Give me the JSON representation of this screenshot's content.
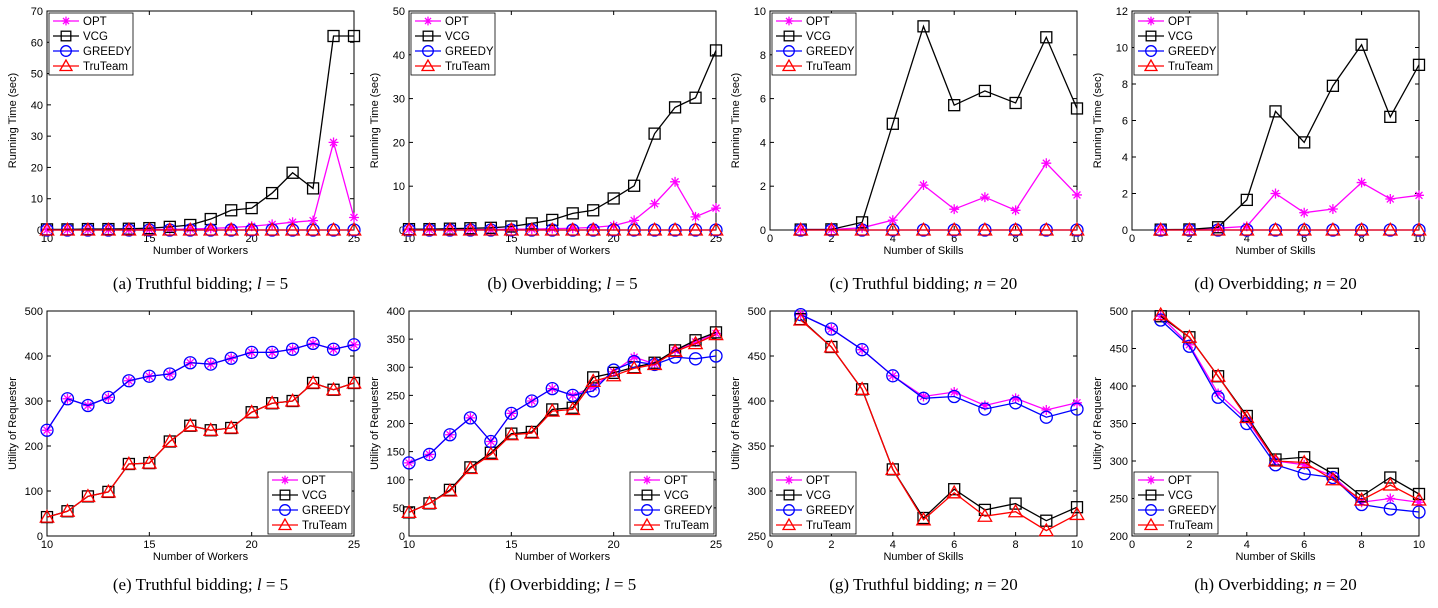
{
  "series_style": [
    {
      "name": "OPT",
      "color": "#ff00ff",
      "marker": "star"
    },
    {
      "name": "VCG",
      "color": "#000000",
      "marker": "square"
    },
    {
      "name": "GREEDY",
      "color": "#0000ff",
      "marker": "circle"
    },
    {
      "name": "TruTeam",
      "color": "#ff0000",
      "marker": "triangle"
    }
  ],
  "chart_data": [
    {
      "type": "line",
      "caption_prefix": "(a) Truthful bidding;",
      "caption_var": "l",
      "caption_eq": " = 5",
      "xlabel": "Number of Workers",
      "ylabel": "Running Time (sec)",
      "xlim": [
        10,
        25
      ],
      "ylim": [
        0,
        70
      ],
      "xticks": [
        10,
        15,
        20,
        25
      ],
      "yticks": [
        0,
        10,
        20,
        30,
        40,
        50,
        60,
        70
      ],
      "legend": "top-left",
      "x": [
        10,
        11,
        12,
        13,
        14,
        15,
        16,
        17,
        18,
        19,
        20,
        21,
        22,
        23,
        24,
        25
      ],
      "series": [
        {
          "name": "OPT",
          "values": [
            0.1,
            0.1,
            0.1,
            0.1,
            0.1,
            0.2,
            0.2,
            0.3,
            0.5,
            0.8,
            1.2,
            1.8,
            2.5,
            3,
            28,
            4
          ]
        },
        {
          "name": "VCG",
          "values": [
            0.2,
            0.2,
            0.3,
            0.3,
            0.4,
            0.6,
            1,
            1.6,
            3.5,
            6.3,
            7,
            11.8,
            18.3,
            13.3,
            62,
            62
          ]
        },
        {
          "name": "GREEDY",
          "values": [
            0,
            0,
            0,
            0,
            0,
            0,
            0,
            0,
            0,
            0,
            0,
            0,
            0,
            0,
            0,
            0
          ]
        },
        {
          "name": "TruTeam",
          "values": [
            0,
            0,
            0,
            0,
            0,
            0,
            0,
            0,
            0,
            0,
            0,
            0,
            0,
            0,
            0,
            0
          ]
        }
      ]
    },
    {
      "type": "line",
      "caption_prefix": "(b) Overbidding;",
      "caption_var": "l",
      "caption_eq": " = 5",
      "xlabel": "Number of Workers",
      "ylabel": "Running Time (sec)",
      "xlim": [
        10,
        25
      ],
      "ylim": [
        0,
        50
      ],
      "xticks": [
        10,
        15,
        20,
        25
      ],
      "yticks": [
        0,
        10,
        20,
        30,
        40,
        50
      ],
      "legend": "top-left",
      "x": [
        10,
        11,
        12,
        13,
        14,
        15,
        16,
        17,
        18,
        19,
        20,
        21,
        22,
        23,
        24,
        25
      ],
      "series": [
        {
          "name": "OPT",
          "values": [
            0.1,
            0.1,
            0.1,
            0.1,
            0.1,
            0.2,
            0.2,
            0.3,
            0.4,
            0.6,
            1,
            2.2,
            6,
            11,
            3,
            5
          ]
        },
        {
          "name": "VCG",
          "values": [
            0.2,
            0.2,
            0.3,
            0.4,
            0.5,
            0.8,
            1.5,
            2.3,
            3.8,
            4.5,
            7.2,
            10.1,
            22,
            28,
            30.2,
            41
          ]
        },
        {
          "name": "GREEDY",
          "values": [
            0,
            0,
            0,
            0,
            0,
            0,
            0,
            0,
            0,
            0,
            0,
            0,
            0,
            0,
            0,
            0
          ]
        },
        {
          "name": "TruTeam",
          "values": [
            0,
            0,
            0,
            0,
            0,
            0,
            0,
            0,
            0,
            0,
            0,
            0,
            0,
            0,
            0,
            0
          ]
        }
      ]
    },
    {
      "type": "line",
      "caption_prefix": "(c) Truthful bidding;",
      "caption_var": "n",
      "caption_eq": " = 20",
      "xlabel": "Number of Skills",
      "ylabel": "Running Time (sec)",
      "xlim": [
        0,
        10
      ],
      "ylim": [
        0,
        10
      ],
      "xticks": [
        0,
        2,
        4,
        6,
        8,
        10
      ],
      "yticks": [
        0,
        2,
        4,
        6,
        8,
        10
      ],
      "legend": "top-left",
      "x": [
        1,
        2,
        3,
        4,
        5,
        6,
        7,
        8,
        9,
        10
      ],
      "series": [
        {
          "name": "OPT",
          "values": [
            0.02,
            0.02,
            0.1,
            0.45,
            2.05,
            0.95,
            1.5,
            0.9,
            3.05,
            1.6
          ]
        },
        {
          "name": "VCG",
          "values": [
            0.02,
            0.03,
            0.35,
            4.85,
            9.3,
            5.7,
            6.35,
            5.8,
            8.8,
            5.55
          ]
        },
        {
          "name": "GREEDY",
          "values": [
            0,
            0,
            0,
            0,
            0,
            0,
            0,
            0,
            0,
            0
          ]
        },
        {
          "name": "TruTeam",
          "values": [
            0,
            0,
            0,
            0,
            0,
            0,
            0,
            0,
            0,
            0
          ]
        }
      ]
    },
    {
      "type": "line",
      "caption_prefix": "(d) Overbidding;",
      "caption_var": "n",
      "caption_eq": " = 20",
      "xlabel": "Number of Skills",
      "ylabel": "Running Time (sec)",
      "xlim": [
        0,
        10
      ],
      "ylim": [
        0,
        12
      ],
      "xticks": [
        0,
        2,
        4,
        6,
        8,
        10
      ],
      "yticks": [
        0,
        2,
        4,
        6,
        8,
        10,
        12
      ],
      "legend": "top-left",
      "x": [
        1,
        2,
        3,
        4,
        5,
        6,
        7,
        8,
        9,
        10
      ],
      "series": [
        {
          "name": "OPT",
          "values": [
            0.02,
            0.02,
            0.1,
            0.2,
            2,
            0.95,
            1.15,
            2.6,
            1.7,
            1.9
          ]
        },
        {
          "name": "VCG",
          "values": [
            0.02,
            0.03,
            0.15,
            1.65,
            6.5,
            4.8,
            7.9,
            10.15,
            6.2,
            9.05
          ]
        },
        {
          "name": "GREEDY",
          "values": [
            0,
            0,
            0,
            0,
            0,
            0,
            0,
            0,
            0,
            0
          ]
        },
        {
          "name": "TruTeam",
          "values": [
            0,
            0,
            0,
            0,
            0,
            0,
            0,
            0,
            0,
            0
          ]
        }
      ]
    },
    {
      "type": "line",
      "caption_prefix": "(e) Truthful bidding;",
      "caption_var": "l",
      "caption_eq": " = 5",
      "xlabel": "Number of Workers",
      "ylabel": "Utility of Requester",
      "xlim": [
        10,
        25
      ],
      "ylim": [
        0,
        500
      ],
      "xticks": [
        10,
        15,
        20,
        25
      ],
      "yticks": [
        0,
        100,
        200,
        300,
        400,
        500
      ],
      "legend": "bottom-right",
      "x": [
        10,
        11,
        12,
        13,
        14,
        15,
        16,
        17,
        18,
        19,
        20,
        21,
        22,
        23,
        24,
        25
      ],
      "series": [
        {
          "name": "OPT",
          "values": [
            235,
            305,
            290,
            308,
            345,
            355,
            360,
            385,
            382,
            395,
            408,
            408,
            415,
            428,
            415,
            425
          ]
        },
        {
          "name": "VCG",
          "values": [
            42,
            55,
            88,
            98,
            160,
            162,
            210,
            245,
            235,
            240,
            275,
            295,
            300,
            340,
            325,
            340
          ]
        },
        {
          "name": "GREEDY",
          "values": [
            235,
            305,
            290,
            308,
            345,
            355,
            360,
            385,
            382,
            395,
            408,
            408,
            415,
            428,
            415,
            425
          ]
        },
        {
          "name": "TruTeam",
          "values": [
            42,
            55,
            88,
            98,
            160,
            162,
            210,
            245,
            235,
            240,
            275,
            295,
            300,
            340,
            325,
            340
          ]
        }
      ]
    },
    {
      "type": "line",
      "caption_prefix": "(f) Overbidding;",
      "caption_var": "l",
      "caption_eq": " = 5",
      "xlabel": "Number of Workers",
      "ylabel": "Utility of Requester",
      "xlim": [
        10,
        25
      ],
      "ylim": [
        0,
        400
      ],
      "xticks": [
        10,
        15,
        20,
        25
      ],
      "yticks": [
        0,
        50,
        100,
        150,
        200,
        250,
        300,
        350,
        400
      ],
      "legend": "bottom-right",
      "x": [
        10,
        11,
        12,
        13,
        14,
        15,
        16,
        17,
        18,
        19,
        20,
        21,
        22,
        23,
        24,
        25
      ],
      "series": [
        {
          "name": "OPT",
          "values": [
            130,
            145,
            180,
            210,
            168,
            218,
            240,
            262,
            250,
            265,
            292,
            318,
            306,
            330,
            345,
            360
          ]
        },
        {
          "name": "VCG",
          "values": [
            42,
            58,
            82,
            122,
            148,
            182,
            185,
            225,
            228,
            282,
            290,
            300,
            308,
            330,
            348,
            362
          ]
        },
        {
          "name": "GREEDY",
          "values": [
            130,
            145,
            180,
            210,
            168,
            218,
            240,
            262,
            250,
            258,
            295,
            310,
            305,
            318,
            315,
            320
          ]
        },
        {
          "name": "TruTeam",
          "values": [
            42,
            58,
            80,
            120,
            145,
            180,
            183,
            222,
            225,
            275,
            285,
            298,
            305,
            328,
            342,
            358
          ]
        }
      ]
    },
    {
      "type": "line",
      "caption_prefix": "(g) Truthful bidding;",
      "caption_var": "n",
      "caption_eq": " = 20",
      "xlabel": "Number of Skills",
      "ylabel": "Utility of Requester",
      "xlim": [
        0,
        10
      ],
      "ylim": [
        250,
        500
      ],
      "xticks": [
        0,
        2,
        4,
        6,
        8,
        10
      ],
      "yticks": [
        250,
        300,
        350,
        400,
        450,
        500
      ],
      "legend": "bottom-left",
      "x": [
        1,
        2,
        3,
        4,
        5,
        6,
        7,
        8,
        9,
        10
      ],
      "series": [
        {
          "name": "OPT",
          "values": [
            496,
            480,
            457,
            428,
            405,
            410,
            395,
            403,
            390,
            398
          ]
        },
        {
          "name": "VCG",
          "values": [
            491,
            460,
            413,
            324,
            270,
            302,
            279,
            286,
            267,
            282
          ]
        },
        {
          "name": "GREEDY",
          "values": [
            496,
            480,
            457,
            428,
            403,
            405,
            391,
            398,
            382,
            391
          ]
        },
        {
          "name": "TruTeam",
          "values": [
            490,
            460,
            413,
            324,
            268,
            298,
            272,
            277,
            256,
            274
          ]
        }
      ]
    },
    {
      "type": "line",
      "caption_prefix": "(h) Overbidding;",
      "caption_var": "n",
      "caption_eq": " = 20",
      "xlabel": "Number of Skills",
      "ylabel": "Utility of Requester",
      "xlim": [
        0,
        10
      ],
      "ylim": [
        200,
        500
      ],
      "xticks": [
        0,
        2,
        4,
        6,
        8,
        10
      ],
      "yticks": [
        200,
        250,
        300,
        350,
        400,
        450,
        500
      ],
      "legend": "bottom-left",
      "x": [
        1,
        2,
        3,
        4,
        5,
        6,
        7,
        8,
        9,
        10
      ],
      "series": [
        {
          "name": "OPT",
          "values": [
            493,
            455,
            390,
            355,
            300,
            295,
            280,
            245,
            250,
            245
          ]
        },
        {
          "name": "VCG",
          "values": [
            493,
            465,
            413,
            360,
            302,
            305,
            283,
            253,
            278,
            256
          ]
        },
        {
          "name": "GREEDY",
          "values": [
            488,
            453,
            385,
            350,
            295,
            283,
            278,
            242,
            236,
            232
          ]
        },
        {
          "name": "TruTeam",
          "values": [
            495,
            465,
            413,
            358,
            300,
            298,
            275,
            248,
            268,
            248
          ]
        }
      ]
    }
  ]
}
